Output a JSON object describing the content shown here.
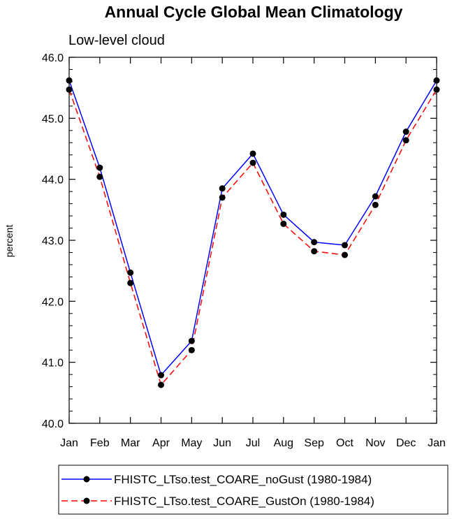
{
  "chart_data": {
    "type": "line",
    "title": "Annual Cycle Global Mean Climatology",
    "subtitle": "Low-level cloud",
    "xlabel": "",
    "ylabel": "percent",
    "ylim": [
      40.0,
      46.0
    ],
    "yticks": [
      "40.0",
      "41.0",
      "42.0",
      "43.0",
      "44.0",
      "45.0",
      "46.0"
    ],
    "categories": [
      "Jan",
      "Feb",
      "Mar",
      "Apr",
      "May",
      "Jun",
      "Jul",
      "Aug",
      "Sep",
      "Oct",
      "Nov",
      "Dec",
      "Jan"
    ],
    "grid": false,
    "legend_position": "bottom",
    "series": [
      {
        "name": "FHISTC_LTso.test_COARE_noGust (1980-1984)",
        "color": "#0000ff",
        "dash": "solid",
        "marker": "filled-circle",
        "values": [
          45.62,
          44.19,
          42.47,
          40.79,
          41.35,
          43.85,
          44.42,
          43.42,
          42.97,
          42.92,
          43.72,
          44.78,
          45.62
        ]
      },
      {
        "name": "FHISTC_LTso.test_COARE_GustOn (1980-1984)",
        "color": "#ff0000",
        "dash": "dashed",
        "marker": "filled-circle",
        "values": [
          45.47,
          44.04,
          42.3,
          40.63,
          41.2,
          43.7,
          44.27,
          43.27,
          42.82,
          42.76,
          43.58,
          44.64,
          45.47
        ]
      }
    ]
  }
}
